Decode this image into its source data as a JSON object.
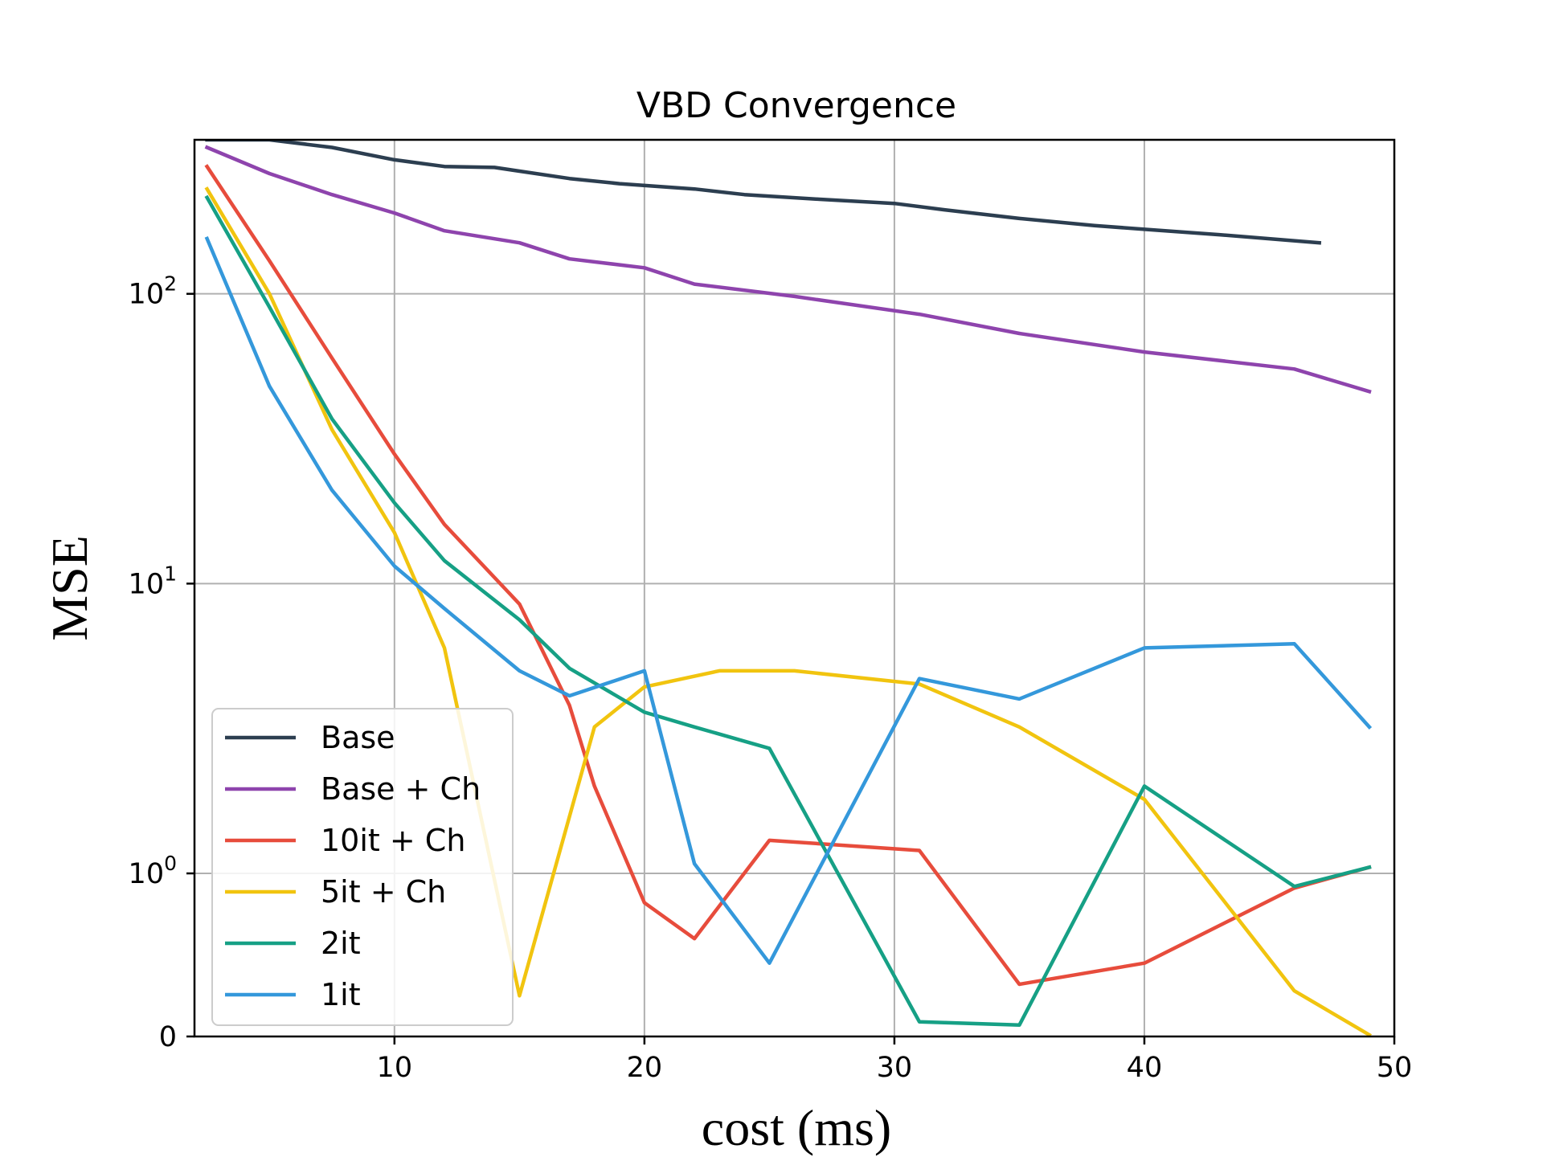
{
  "chart_data": {
    "type": "line",
    "title": "VBD Convergence",
    "xlabel": "cost (ms)",
    "ylabel": "MSE",
    "xlim": [
      2,
      50
    ],
    "ylim_display": [
      0,
      340
    ],
    "yscale": "symlog",
    "grid": true,
    "legend_position": "lower-left",
    "x_ticks": [
      "10",
      "20",
      "30",
      "40",
      "50"
    ],
    "y_ticks": [
      {
        "value": 0,
        "base": "0",
        "exp": ""
      },
      {
        "value": 1,
        "base": "10",
        "exp": "0"
      },
      {
        "value": 10,
        "base": "10",
        "exp": "1"
      },
      {
        "value": 100,
        "base": "10",
        "exp": "2"
      }
    ],
    "series": [
      {
        "name": "Base",
        "color": "#2c3e50",
        "x": [
          2.5,
          5,
          7.5,
          10,
          12,
          14,
          17,
          19,
          22,
          24,
          27,
          30,
          32,
          35,
          38,
          40,
          43,
          47
        ],
        "y": [
          450,
          350,
          320,
          290,
          275,
          273,
          250,
          240,
          230,
          220,
          212,
          205,
          195,
          182,
          172,
          167,
          160,
          150
        ]
      },
      {
        "name": "Base + Ch",
        "color": "#8e44ad",
        "x": [
          2.5,
          5,
          7.5,
          10,
          12,
          15,
          17,
          20,
          22,
          26,
          31,
          35,
          40,
          46,
          49
        ],
        "y": [
          320,
          260,
          220,
          190,
          165,
          150,
          132,
          123,
          108,
          98,
          85,
          73,
          63,
          55,
          46
        ]
      },
      {
        "name": "10it + Ch",
        "color": "#e74c3c",
        "x": [
          2.5,
          5,
          7.5,
          10,
          12,
          15,
          17,
          18,
          20,
          22,
          25,
          31,
          35,
          40,
          46,
          49
        ],
        "y": [
          275,
          130,
          60,
          28,
          16,
          8.5,
          3.8,
          2.0,
          0.82,
          0.6,
          1.3,
          1.2,
          0.32,
          0.45,
          0.91,
          1.05
        ]
      },
      {
        "name": "5it + Ch",
        "color": "#f1c40f",
        "x": [
          2.5,
          5,
          7.5,
          10,
          12,
          15,
          18,
          20,
          23,
          26,
          31,
          35,
          40,
          46,
          49
        ],
        "y": [
          230,
          100,
          34,
          15,
          6,
          0.25,
          3.2,
          4.4,
          5.0,
          5.0,
          4.5,
          3.2,
          1.8,
          0.28,
          0.01
        ]
      },
      {
        "name": "2it",
        "color": "#16a085",
        "x": [
          2.5,
          5,
          7.5,
          10,
          12,
          15,
          17,
          20,
          22,
          25,
          31,
          35,
          40,
          46,
          49
        ],
        "y": [
          215,
          90,
          37,
          19,
          12,
          7.5,
          5.1,
          3.6,
          3.2,
          2.7,
          0.09,
          0.07,
          2.0,
          0.92,
          1.05
        ]
      },
      {
        "name": "1it",
        "color": "#3498db",
        "x": [
          2.5,
          5,
          7.5,
          10,
          12,
          15,
          17,
          20,
          22,
          25,
          31,
          35,
          40,
          46,
          49
        ],
        "y": [
          155,
          48,
          21,
          11.5,
          8.2,
          5.0,
          4.1,
          5.0,
          1.08,
          0.45,
          4.7,
          4.0,
          6.0,
          6.2,
          3.2
        ]
      }
    ]
  }
}
